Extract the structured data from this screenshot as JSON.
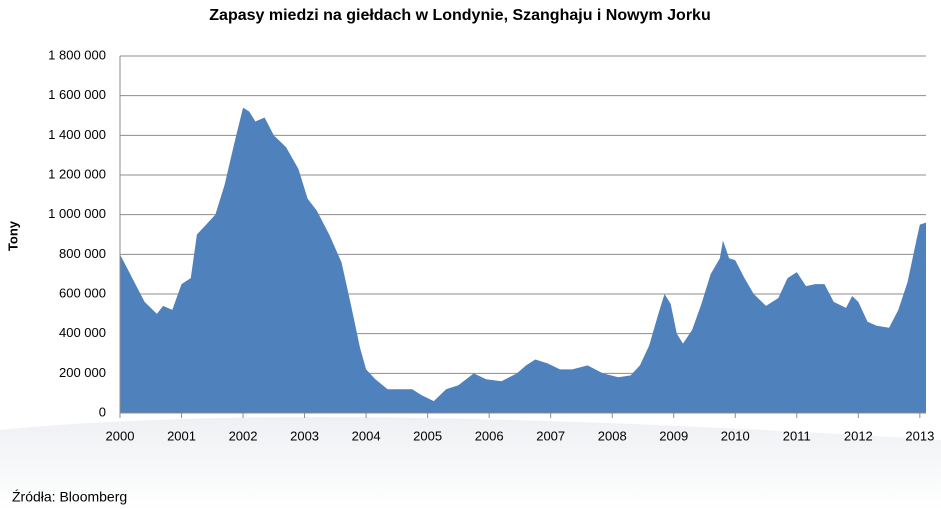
{
  "chart_data": {
    "type": "area",
    "title": "Zapasy miedzi na giełdach w Londynie, Szanghaju i Nowym Jorku",
    "y_label": "Tony",
    "source": "Źródła: Bloomberg",
    "color": "#4f81bd",
    "grid": true,
    "x": [
      2000.0,
      2000.1,
      2000.25,
      2000.4,
      2000.6,
      2000.7,
      2000.85,
      2001.0,
      2001.15,
      2001.25,
      2001.4,
      2001.55,
      2001.7,
      2001.85,
      2002.0,
      2002.1,
      2002.2,
      2002.35,
      2002.5,
      2002.7,
      2002.9,
      2003.05,
      2003.2,
      2003.4,
      2003.6,
      2003.75,
      2003.9,
      2004.0,
      2004.15,
      2004.35,
      2004.55,
      2004.75,
      2004.9,
      2005.1,
      2005.3,
      2005.5,
      2005.75,
      2005.95,
      2006.2,
      2006.45,
      2006.6,
      2006.75,
      2006.95,
      2007.15,
      2007.35,
      2007.6,
      2007.85,
      2008.1,
      2008.3,
      2008.45,
      2008.6,
      2008.75,
      2008.85,
      2008.95,
      2009.05,
      2009.15,
      2009.3,
      2009.45,
      2009.6,
      2009.75,
      2009.8,
      2009.9,
      2010.0,
      2010.15,
      2010.3,
      2010.5,
      2010.7,
      2010.85,
      2011.0,
      2011.15,
      2011.3,
      2011.45,
      2011.6,
      2011.8,
      2011.9,
      2012.0,
      2012.15,
      2012.3,
      2012.5,
      2012.65,
      2012.8,
      2012.95,
      2013.0,
      2013.1
    ],
    "values": [
      800000,
      740000,
      650000,
      560000,
      500000,
      540000,
      520000,
      650000,
      680000,
      900000,
      950000,
      1000000,
      1150000,
      1350000,
      1540000,
      1520000,
      1470000,
      1490000,
      1400000,
      1340000,
      1230000,
      1080000,
      1020000,
      900000,
      760000,
      550000,
      330000,
      220000,
      170000,
      120000,
      120000,
      120000,
      90000,
      60000,
      120000,
      140000,
      200000,
      170000,
      160000,
      200000,
      240000,
      270000,
      250000,
      220000,
      220000,
      240000,
      200000,
      180000,
      190000,
      240000,
      340000,
      500000,
      600000,
      550000,
      400000,
      350000,
      420000,
      550000,
      700000,
      780000,
      870000,
      780000,
      770000,
      680000,
      600000,
      540000,
      580000,
      680000,
      710000,
      640000,
      650000,
      650000,
      560000,
      530000,
      590000,
      560000,
      460000,
      440000,
      430000,
      520000,
      660000,
      880000,
      950000,
      960000
    ],
    "xlim": [
      2000,
      2013.1
    ],
    "xticks": [
      2000,
      2001,
      2002,
      2003,
      2004,
      2005,
      2006,
      2007,
      2008,
      2009,
      2010,
      2011,
      2012,
      2013
    ],
    "ylim": [
      0,
      1800000
    ],
    "yticks": [
      0,
      {
        "value": 200000,
        "label": "200 000"
      },
      {
        "value": 400000,
        "label": "400 000"
      },
      {
        "value": 600000,
        "label": "600 000"
      },
      {
        "value": 800000,
        "label": "800 000"
      },
      {
        "value": 1000000,
        "label": "1 000 000"
      },
      {
        "value": 1200000,
        "label": "1 200 000"
      },
      {
        "value": 1400000,
        "label": "1 400 000"
      },
      {
        "value": 1600000,
        "label": "1 600 000"
      },
      {
        "value": 1800000,
        "label": "1 800 000"
      }
    ]
  }
}
